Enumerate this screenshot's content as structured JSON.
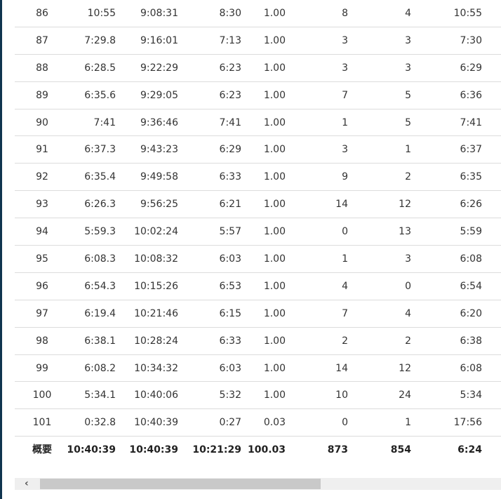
{
  "rows": [
    [
      "86",
      "10:55",
      "9:08:31",
      "8:30",
      "1.00",
      "8",
      "4",
      "10:55"
    ],
    [
      "87",
      "7:29.8",
      "9:16:01",
      "7:13",
      "1.00",
      "3",
      "3",
      "7:30"
    ],
    [
      "88",
      "6:28.5",
      "9:22:29",
      "6:23",
      "1.00",
      "3",
      "3",
      "6:29"
    ],
    [
      "89",
      "6:35.6",
      "9:29:05",
      "6:23",
      "1.00",
      "7",
      "5",
      "6:36"
    ],
    [
      "90",
      "7:41",
      "9:36:46",
      "7:41",
      "1.00",
      "1",
      "5",
      "7:41"
    ],
    [
      "91",
      "6:37.3",
      "9:43:23",
      "6:29",
      "1.00",
      "3",
      "1",
      "6:37"
    ],
    [
      "92",
      "6:35.4",
      "9:49:58",
      "6:33",
      "1.00",
      "9",
      "2",
      "6:35"
    ],
    [
      "93",
      "6:26.3",
      "9:56:25",
      "6:21",
      "1.00",
      "14",
      "12",
      "6:26"
    ],
    [
      "94",
      "5:59.3",
      "10:02:24",
      "5:57",
      "1.00",
      "0",
      "13",
      "5:59"
    ],
    [
      "95",
      "6:08.3",
      "10:08:32",
      "6:03",
      "1.00",
      "1",
      "3",
      "6:08"
    ],
    [
      "96",
      "6:54.3",
      "10:15:26",
      "6:53",
      "1.00",
      "4",
      "0",
      "6:54"
    ],
    [
      "97",
      "6:19.4",
      "10:21:46",
      "6:15",
      "1.00",
      "7",
      "4",
      "6:20"
    ],
    [
      "98",
      "6:38.1",
      "10:28:24",
      "6:33",
      "1.00",
      "2",
      "2",
      "6:38"
    ],
    [
      "99",
      "6:08.2",
      "10:34:32",
      "6:03",
      "1.00",
      "14",
      "12",
      "6:08"
    ],
    [
      "100",
      "5:34.1",
      "10:40:06",
      "5:32",
      "1.00",
      "10",
      "24",
      "5:34"
    ],
    [
      "101",
      "0:32.8",
      "10:40:39",
      "0:27",
      "0.03",
      "0",
      "1",
      "17:56"
    ]
  ],
  "summary": [
    "概要",
    "10:40:39",
    "10:40:39",
    "10:21:29",
    "100.03",
    "873",
    "854",
    "6:24"
  ],
  "scrollbar": {
    "icon": "chevron-left-icon",
    "glyph": "‹",
    "position_percent": 0
  }
}
